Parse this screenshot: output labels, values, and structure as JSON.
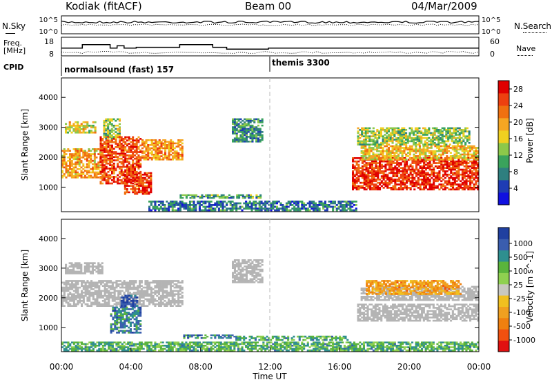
{
  "header": {
    "station": "Kodiak (fitACF)",
    "beam": "Beam 00",
    "date": "04/Mar/2009"
  },
  "side_labels": {
    "nsky": "N.Sky",
    "nsearch": "N.Search",
    "freq_line1": "Freq.",
    "freq_line2": "[MHz]",
    "nave": "Nave",
    "cpid": "CPID"
  },
  "cpid_labels": [
    "normalsound (fast) 157",
    "themis 3300"
  ],
  "colors": {
    "power_scale": [
      "#1010e0",
      "#1e3cb4",
      "#2e7f7f",
      "#3aa35c",
      "#8cc84a",
      "#f0d020",
      "#f5a623",
      "#f07010",
      "#ee4010",
      "#e00000"
    ],
    "velocity_scale": [
      "#2040a0",
      "#3a5dae",
      "#2e8f8f",
      "#5ab43c",
      "#8fd050",
      "#c8c8c0",
      "#f0c020",
      "#f0a020",
      "#f08010",
      "#f05010",
      "#e01010"
    ],
    "ground_scatter": "#b4b4b4"
  },
  "chart_data": [
    {
      "type": "line",
      "name": "noise-panel",
      "x_range_hours": [
        0,
        24
      ],
      "left_axis": {
        "label": "N.Sky",
        "ticks": [
          "10^5",
          "10^0"
        ]
      },
      "right_axis": {
        "label": "N.Search",
        "ticks": [
          "10^5",
          "10^0"
        ]
      },
      "series": [
        {
          "line": "solid",
          "level_fraction": 0.35
        },
        {
          "line": "dotted",
          "level_fraction": 0.5
        }
      ]
    },
    {
      "type": "line",
      "name": "freq-nave-panel",
      "x": [
        0,
        0.9,
        1.2,
        2.8,
        3.2,
        3.6,
        4.3,
        6.8,
        8.7,
        9.5,
        10.1,
        11.9,
        24
      ],
      "left_axis": {
        "label": "Freq. [MHz]",
        "ticks": [
          "18",
          "8"
        ],
        "range": [
          8,
          18
        ]
      },
      "right_axis": {
        "label": "Nave",
        "ticks": [
          "60",
          "0"
        ],
        "range": [
          0,
          60
        ]
      },
      "series": [
        {
          "name": "Freq.",
          "values": [
            12.2,
            12.2,
            14.0,
            12.2,
            13.4,
            12.2,
            12.6,
            14.0,
            12.6,
            11.6,
            11.6,
            12.2,
            12.2
          ]
        }
      ]
    },
    {
      "type": "heatmap",
      "name": "power-panel",
      "xlabel": "",
      "ylabel": "Slant Range [km]",
      "xlim": [
        0,
        24
      ],
      "ylim": [
        180,
        4650
      ],
      "yticks": [
        1000,
        2000,
        3000,
        4000
      ],
      "colorbar": {
        "label": "Power [dB]",
        "ticks": [
          4,
          8,
          12,
          16,
          20,
          24,
          28
        ],
        "range": [
          0,
          30
        ]
      },
      "regions": [
        {
          "t": [
            0.0,
            2.4
          ],
          "r": [
            1300,
            2300
          ],
          "level": 0.65
        },
        {
          "t": [
            2.2,
            4.6
          ],
          "r": [
            1100,
            2700
          ],
          "level": 0.82
        },
        {
          "t": [
            3.6,
            5.2
          ],
          "r": [
            750,
            1500
          ],
          "level": 0.85
        },
        {
          "t": [
            4.6,
            7.0
          ],
          "r": [
            1900,
            2600
          ],
          "level": 0.7
        },
        {
          "t": [
            0.2,
            2.0
          ],
          "r": [
            2800,
            3200
          ],
          "level": 0.55
        },
        {
          "t": [
            2.4,
            3.4
          ],
          "r": [
            2600,
            3300
          ],
          "level": 0.45
        },
        {
          "t": [
            9.8,
            11.6
          ],
          "r": [
            2500,
            3300
          ],
          "level": 0.3
        },
        {
          "t": [
            6.8,
            11.5
          ],
          "r": [
            620,
            760
          ],
          "level": 0.35
        },
        {
          "t": [
            16.7,
            24.0
          ],
          "r": [
            900,
            2000
          ],
          "level": 0.88
        },
        {
          "t": [
            17.2,
            24.0
          ],
          "r": [
            1900,
            2400
          ],
          "level": 0.6
        },
        {
          "t": [
            17.0,
            23.5
          ],
          "r": [
            2400,
            3000
          ],
          "level": 0.45
        },
        {
          "t": [
            5.0,
            17.0
          ],
          "r": [
            200,
            550
          ],
          "level": 0.25
        }
      ]
    },
    {
      "type": "heatmap",
      "name": "velocity-panel",
      "xlabel": "Time UT",
      "ylabel": "Slant Range [km]",
      "xlim": [
        0,
        24
      ],
      "ylim": [
        180,
        4650
      ],
      "yticks": [
        1000,
        2000,
        3000,
        4000
      ],
      "xtick_labels": [
        "00:00",
        "04:00",
        "08:00",
        "12:00",
        "16:00",
        "20:00",
        "00:00"
      ],
      "colorbar": {
        "label": "Velocity [m s^-1]",
        "ticks": [
          1000,
          500,
          100,
          25,
          -25,
          -100,
          -500,
          -1000
        ]
      },
      "regions": [
        {
          "t": [
            0.0,
            7.0
          ],
          "r": [
            1700,
            2600
          ],
          "kind": "ground"
        },
        {
          "t": [
            0.2,
            2.4
          ],
          "r": [
            2800,
            3200
          ],
          "kind": "ground"
        },
        {
          "t": [
            2.8,
            4.6
          ],
          "r": [
            800,
            1700
          ],
          "level": 0.2
        },
        {
          "t": [
            3.4,
            4.4
          ],
          "r": [
            1700,
            2100
          ],
          "level": 0.1
        },
        {
          "t": [
            7.0,
            10.0
          ],
          "r": [
            620,
            760
          ],
          "level": 0.2
        },
        {
          "t": [
            10.0,
            16.5
          ],
          "r": [
            550,
            720
          ],
          "level": 0.3
        },
        {
          "t": [
            9.8,
            11.6
          ],
          "r": [
            2500,
            3300
          ],
          "kind": "ground"
        },
        {
          "t": [
            17.0,
            24.0
          ],
          "r": [
            1200,
            1800
          ],
          "kind": "ground"
        },
        {
          "t": [
            17.2,
            24.0
          ],
          "r": [
            1900,
            2400
          ],
          "kind": "ground"
        },
        {
          "t": [
            17.5,
            23.0
          ],
          "r": [
            2100,
            2600
          ],
          "level": 0.7
        },
        {
          "t": [
            0.0,
            24.0
          ],
          "r": [
            200,
            520
          ],
          "level": 0.3
        }
      ]
    }
  ]
}
